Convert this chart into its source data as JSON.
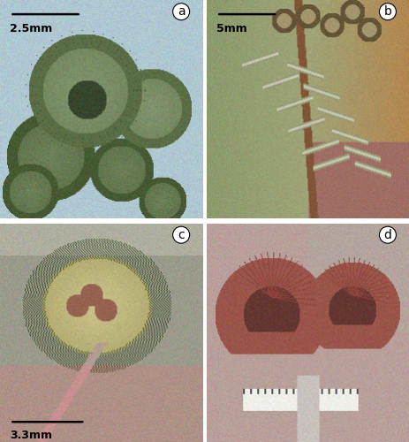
{
  "figsize": [
    4.63,
    5.0
  ],
  "dpi": 100,
  "panel_labels": [
    "a",
    "b",
    "c",
    "d"
  ],
  "scale_bar_texts": [
    "2.5mm",
    "5mm",
    "3.3mm",
    ""
  ],
  "bg_colors_a": [
    175,
    200,
    210
  ],
  "bg_colors_b": [
    155,
    165,
    120
  ],
  "bg_colors_c": [
    155,
    155,
    140
  ],
  "bg_colors_d": [
    185,
    160,
    155
  ],
  "white_border": "#ffffff",
  "label_fontsize": 10,
  "scalebar_fontsize": 9
}
